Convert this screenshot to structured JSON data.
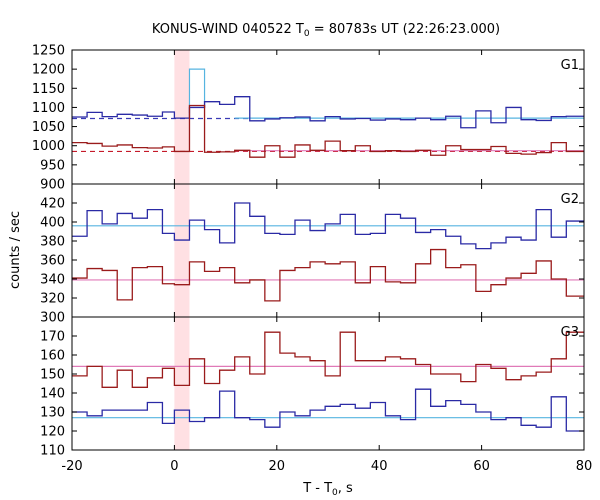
{
  "chart_data": {
    "type": "line",
    "title": "KONUS-WIND 040522 T",
    "title_sub": "0",
    "title_rest": " = 80783s UT (22:26:23.000)",
    "xlabel": "T - T",
    "xlabel_sub": "0",
    "xlabel_rest": ", s",
    "ylabel": "counts / sec",
    "xlim": [
      -20,
      80
    ],
    "x_ticks": [
      "-20",
      "0",
      "20",
      "40",
      "60",
      "80"
    ],
    "x_tick_values": [
      -20,
      0,
      20,
      40,
      60,
      80
    ],
    "highlight_band": [
      0,
      2.944
    ],
    "bin_edges": [
      -20,
      -17.056,
      -14.112,
      -11.168,
      -8.224,
      -5.28,
      -2.336,
      0,
      2.944,
      5.888,
      8.832,
      11.776,
      14.72,
      17.664,
      20.608,
      23.552,
      26.496,
      29.44,
      32.384,
      35.328,
      38.272,
      41.216,
      44.16,
      47.104,
      50.048,
      52.992,
      55.936,
      58.88,
      61.824,
      64.768,
      67.712,
      70.656,
      73.6,
      76.544,
      80
    ],
    "panels": [
      {
        "label": "G1",
        "ylim": [
          900,
          1250
        ],
        "y_ticks": [
          "900",
          "950",
          "1000",
          "1050",
          "1100",
          "1150",
          "1200",
          "1250"
        ],
        "y_tick_values": [
          900,
          950,
          1000,
          1050,
          1100,
          1150,
          1200,
          1250
        ],
        "series": [
          {
            "name": "G1 blue",
            "color": "#2a2aa5",
            "values": [
              1075,
              1087,
              1076,
              1082,
              1080,
              1077,
              1088,
              1072,
              1100,
              1115,
              1108,
              1128,
              1065,
              1070,
              1073,
              1075,
              1065,
              1076,
              1070,
              1071,
              1067,
              1070,
              1068,
              1072,
              1068,
              1077,
              1047,
              1091,
              1060,
              1100,
              1068,
              1066,
              1076,
              1077
            ]
          },
          {
            "name": "G1 red",
            "color": "#9a1b1b",
            "values": [
              1008,
              1006,
              999,
              1002,
              995,
              994,
              997,
              985,
              1105,
              983,
              984,
              988,
              970,
              1000,
              970,
              1002,
              988,
              1012,
              987,
              1000,
              985,
              987,
              985,
              988,
              975,
              1000,
              990,
              990,
              998,
              980,
              978,
              982,
              1008,
              985
            ]
          }
        ],
        "fits": [
          {
            "name": "G1 blue background",
            "color": "#3a3ab5",
            "dashed": true,
            "value": 1071,
            "x_end": 14.72
          },
          {
            "name": "G1 red background",
            "color": "#c51a2a",
            "dashed": true,
            "value": 985
          },
          {
            "name": "G1 blue fit",
            "color": "#56b4e0",
            "dashed": false,
            "value": 1072,
            "x_start": 11.776
          },
          {
            "name": "G1 red fit",
            "color": "#e07ab8",
            "dashed": false,
            "value": 987,
            "x_start": 11.776
          }
        ],
        "extra": {
          "name": "G1 light peak",
          "color": "#56b4e0",
          "x": [
            2.944,
            5.888
          ],
          "value": 1200
        }
      },
      {
        "label": "G2",
        "ylim": [
          300,
          440
        ],
        "y_ticks": [
          "300",
          "320",
          "340",
          "360",
          "380",
          "400",
          "420"
        ],
        "y_tick_values": [
          300,
          320,
          340,
          360,
          380,
          400,
          420
        ],
        "series": [
          {
            "name": "G2 blue",
            "color": "#2a2aa5",
            "values": [
              385,
              412,
              398,
              409,
              404,
              413,
              388,
              381,
              402,
              392,
              378,
              420,
              406,
              388,
              387,
              402,
              391,
              398,
              408,
              387,
              388,
              408,
              404,
              389,
              392,
              385,
              377,
              372,
              378,
              384,
              381,
              413,
              384,
              401
            ]
          },
          {
            "name": "G2 red",
            "color": "#9a1b1b",
            "values": [
              341,
              351,
              349,
              318,
              352,
              353,
              335,
              334,
              358,
              348,
              352,
              336,
              339,
              317,
              349,
              352,
              358,
              356,
              358,
              336,
              353,
              337,
              336,
              356,
              371,
              352,
              355,
              327,
              334,
              341,
              346,
              359,
              340,
              322
            ]
          }
        ],
        "fits": [
          {
            "name": "G2 blue fit",
            "color": "#56b4e0",
            "dashed": false,
            "value": 396
          },
          {
            "name": "G2 red fit",
            "color": "#e07ab8",
            "dashed": false,
            "value": 339
          }
        ]
      },
      {
        "label": "G3",
        "ylim": [
          110,
          180
        ],
        "y_ticks": [
          "110",
          "120",
          "130",
          "140",
          "150",
          "160",
          "170"
        ],
        "y_tick_values": [
          110,
          120,
          130,
          140,
          150,
          160,
          170
        ],
        "series": [
          {
            "name": "G3 blue",
            "color": "#2a2aa5",
            "values": [
              130,
              128,
              131,
              131,
              131,
              135,
              124,
              131,
              125,
              127,
              141,
              127,
              126,
              122,
              130,
              128,
              131,
              133,
              134,
              132,
              135,
              128,
              126,
              142,
              133,
              136,
              134,
              130,
              126,
              127,
              123,
              122,
              138,
              120
            ]
          },
          {
            "name": "G3 red",
            "color": "#9a1b1b",
            "values": [
              149,
              154,
              143,
              152,
              143,
              148,
              153,
              144,
              158,
              145,
              152,
              159,
              150,
              172,
              161,
              159,
              157,
              149,
              172,
              157,
              157,
              159,
              158,
              155,
              150,
              150,
              146,
              155,
              153,
              147,
              149,
              151,
              158,
              172
            ]
          }
        ],
        "fits": [
          {
            "name": "G3 blue fit",
            "color": "#56b4e0",
            "dashed": false,
            "value": 127
          },
          {
            "name": "G3 red fit",
            "color": "#e07ab8",
            "dashed": false,
            "value": 154
          }
        ]
      }
    ]
  }
}
